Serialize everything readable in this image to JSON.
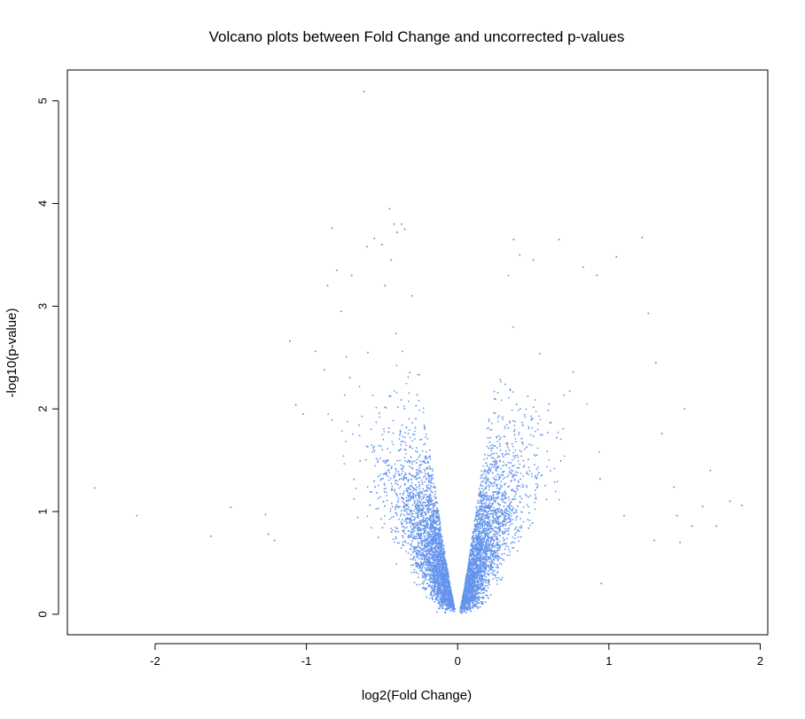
{
  "chart_data": {
    "type": "scatter",
    "title": "Volcano plots between Fold Change and uncorrected p-values",
    "xlabel": "log2(Fold Change)",
    "ylabel": "-log10(p-value)",
    "xlim": [
      -2.58,
      2.05
    ],
    "ylim": [
      -0.2,
      5.3
    ],
    "x_ticks": [
      -2,
      -1,
      0,
      1,
      2
    ],
    "y_ticks": [
      0,
      1,
      2,
      3,
      4,
      5
    ],
    "grid": false,
    "legend": "none",
    "point_color": "#6495ED",
    "points": [
      [
        -2.4,
        1.23
      ],
      [
        -2.12,
        0.96
      ],
      [
        -1.63,
        0.76
      ],
      [
        -1.5,
        1.04
      ],
      [
        -1.27,
        0.97
      ],
      [
        -1.25,
        0.78
      ],
      [
        -1.21,
        0.72
      ],
      [
        -1.11,
        2.66
      ],
      [
        -1.07,
        2.04
      ],
      [
        -1.02,
        1.95
      ],
      [
        -0.94,
        2.56
      ],
      [
        -0.86,
        3.2
      ],
      [
        -0.83,
        3.76
      ],
      [
        -0.8,
        3.35
      ],
      [
        -0.77,
        2.95
      ],
      [
        -0.7,
        3.3
      ],
      [
        -0.62,
        5.09
      ],
      [
        -0.6,
        3.58
      ],
      [
        -0.55,
        3.66
      ],
      [
        -0.5,
        3.6
      ],
      [
        -0.45,
        3.95
      ],
      [
        -0.42,
        3.8
      ],
      [
        -0.4,
        3.72
      ],
      [
        -0.37,
        3.8
      ],
      [
        -0.35,
        3.75
      ],
      [
        -0.48,
        3.2
      ],
      [
        -0.44,
        3.45
      ],
      [
        -0.3,
        3.1
      ],
      [
        0.37,
        3.65
      ],
      [
        0.41,
        3.5
      ],
      [
        0.5,
        3.45
      ],
      [
        0.67,
        3.65
      ],
      [
        0.83,
        3.38
      ],
      [
        0.92,
        3.3
      ],
      [
        1.05,
        3.48
      ],
      [
        1.22,
        3.67
      ],
      [
        1.26,
        2.93
      ],
      [
        1.31,
        2.45
      ],
      [
        1.35,
        1.76
      ],
      [
        1.43,
        1.24
      ],
      [
        1.45,
        0.96
      ],
      [
        1.47,
        0.7
      ],
      [
        1.5,
        2.0
      ],
      [
        1.55,
        0.86
      ],
      [
        1.62,
        1.05
      ],
      [
        1.67,
        1.4
      ],
      [
        1.71,
        0.86
      ],
      [
        1.8,
        1.1
      ],
      [
        1.88,
        1.06
      ],
      [
        1.3,
        0.72
      ],
      [
        1.1,
        0.96
      ],
      [
        0.95,
        0.3
      ]
    ],
    "cloud_description_n": 0
  }
}
